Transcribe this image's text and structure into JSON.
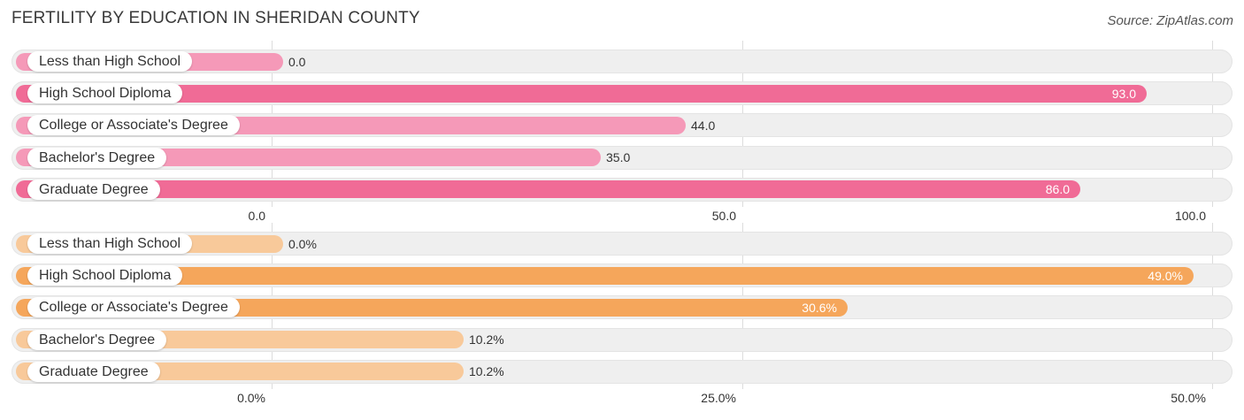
{
  "title": "FERTILITY BY EDUCATION IN SHERIDAN COUNTY",
  "source": "Source: ZipAtlas.com",
  "chart_data": [
    {
      "type": "bar",
      "orientation": "horizontal",
      "categories": [
        "Less than High School",
        "High School Diploma",
        "College or Associate's Degree",
        "Bachelor's Degree",
        "Graduate Degree"
      ],
      "values": [
        0.0,
        93.0,
        44.0,
        35.0,
        86.0
      ],
      "value_labels": [
        "0.0",
        "93.0",
        "44.0",
        "35.0",
        "86.0"
      ],
      "xlim": [
        0,
        100
      ],
      "ticks": [
        "0.0",
        "50.0",
        "100.0"
      ],
      "grid": true,
      "colors": {
        "strong": "#f06b96",
        "light": "#f599b8"
      }
    },
    {
      "type": "bar",
      "orientation": "horizontal",
      "categories": [
        "Less than High School",
        "High School Diploma",
        "College or Associate's Degree",
        "Bachelor's Degree",
        "Graduate Degree"
      ],
      "values": [
        0.0,
        49.0,
        30.6,
        10.2,
        10.2
      ],
      "value_labels": [
        "0.0%",
        "49.0%",
        "30.6%",
        "10.2%",
        "10.2%"
      ],
      "xlim": [
        0,
        50
      ],
      "ticks": [
        "0.0%",
        "25.0%",
        "50.0%"
      ],
      "grid": true,
      "colors": {
        "strong": "#f5a65b",
        "light": "#f8c99a"
      }
    }
  ]
}
